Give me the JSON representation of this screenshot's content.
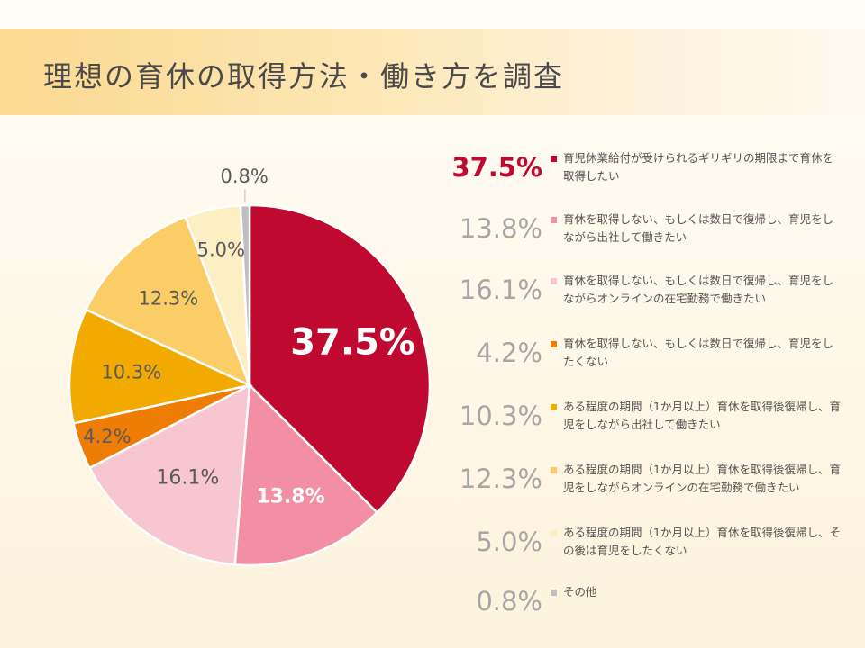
{
  "header": {
    "title": "理想の育休の取得方法・働き方を調査"
  },
  "chart_data": {
    "type": "pie",
    "title": "理想の育休の取得方法・働き方を調査",
    "unit": "%",
    "slices": [
      {
        "label": "育児休業給付が受けられるギリギリの期限まで育休を取得したい",
        "value": 37.5,
        "value_label": "37.5%",
        "color": "#c0092e"
      },
      {
        "label": "育休を取得しない、もしくは数日で復帰し、育児をしながら出社して働きたい",
        "value": 13.8,
        "value_label": "13.8%",
        "color": "#f28fa2"
      },
      {
        "label": "育休を取得しない、もしくは数日で復帰し、育児をしながらオンラインの在宅勤務で働きたい",
        "value": 16.1,
        "value_label": "16.1%",
        "color": "#f7c6d0"
      },
      {
        "label": "育休を取得しない、もしくは数日で復帰し、育児をしたくない",
        "value": 4.2,
        "value_label": "4.2%",
        "color": "#ed7d05"
      },
      {
        "label": "ある程度の期間（1か月以上）育休を取得後復帰し、育児をしながら出社して働きたい",
        "value": 10.3,
        "value_label": "10.3%",
        "color": "#f2a900"
      },
      {
        "label": "ある程度の期間（1か月以上）育休を取得後復帰し、育児をしながらオンラインの在宅勤務で働きたい",
        "value": 12.3,
        "value_label": "12.3%",
        "color": "#fbcd66"
      },
      {
        "label": "ある程度の期間（1か月以上）育休を取得後復帰し、その後は育児をしたくない",
        "value": 5.0,
        "value_label": "5.0%",
        "color": "#fdefc4"
      },
      {
        "label": "その他",
        "value": 0.8,
        "value_label": "0.8%",
        "color": "#bfbfbf"
      }
    ]
  }
}
